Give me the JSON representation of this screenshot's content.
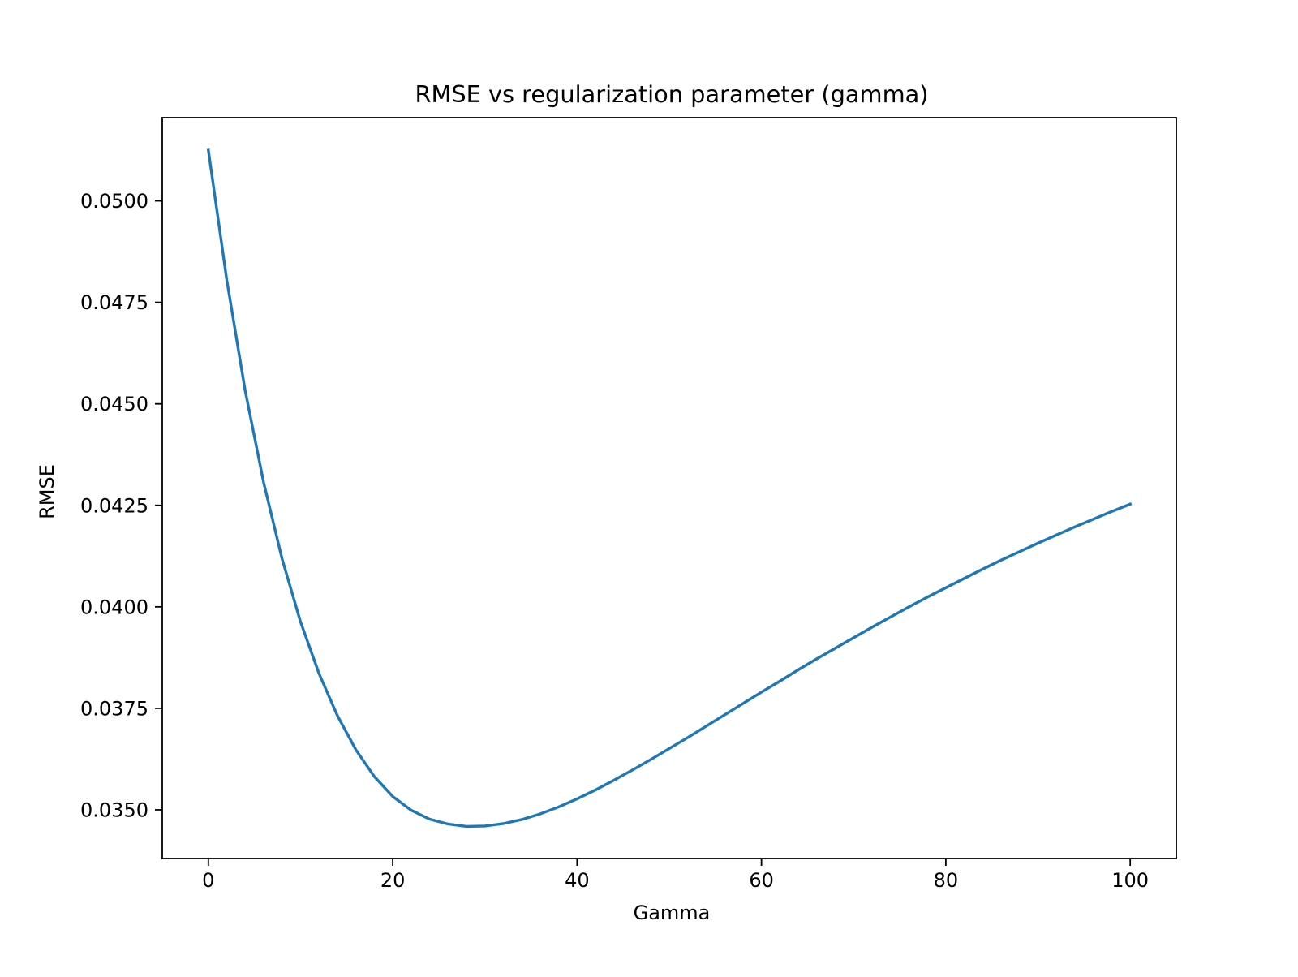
{
  "chart_data": {
    "type": "line",
    "title": "RMSE vs regularization parameter (gamma)",
    "xlabel": "Gamma",
    "ylabel": "RMSE",
    "xlim": [
      -5,
      105
    ],
    "ylim": [
      0.0338,
      0.05205
    ],
    "xticks": [
      0,
      20,
      40,
      60,
      80,
      100
    ],
    "xtick_labels": [
      "0",
      "20",
      "40",
      "60",
      "80",
      "100"
    ],
    "yticks": [
      0.035,
      0.0375,
      0.04,
      0.0425,
      0.045,
      0.0475,
      0.05
    ],
    "ytick_labels": [
      "0.0350",
      "0.0375",
      "0.0400",
      "0.0425",
      "0.0450",
      "0.0475",
      "0.0500"
    ],
    "grid": false,
    "legend": null,
    "series": [
      {
        "color": "#1f77b4",
        "x": [
          0,
          2,
          4,
          6,
          8,
          10,
          12,
          14,
          16,
          18,
          20,
          22,
          24,
          26,
          28,
          30,
          32,
          34,
          36,
          38,
          40,
          42,
          44,
          46,
          48,
          50,
          52,
          54,
          56,
          58,
          60,
          62,
          64,
          66,
          68,
          70,
          72,
          74,
          76,
          78,
          80,
          82,
          84,
          86,
          88,
          90,
          92,
          94,
          96,
          98,
          100
        ],
        "y": [
          0.05125,
          0.04805,
          0.04532,
          0.04306,
          0.04118,
          0.03963,
          0.03836,
          0.03732,
          0.03648,
          0.03582,
          0.03533,
          0.03499,
          0.03477,
          0.03465,
          0.03459,
          0.0346,
          0.03466,
          0.03476,
          0.0349,
          0.03507,
          0.03527,
          0.03549,
          0.03573,
          0.03598,
          0.03624,
          0.03651,
          0.03678,
          0.03706,
          0.03734,
          0.03762,
          0.0379,
          0.03817,
          0.03845,
          0.03872,
          0.03898,
          0.03924,
          0.0395,
          0.03975,
          0.04,
          0.04024,
          0.04047,
          0.0407,
          0.04093,
          0.04115,
          0.04136,
          0.04157,
          0.04177,
          0.04197,
          0.04216,
          0.04235,
          0.04253
        ]
      }
    ]
  }
}
